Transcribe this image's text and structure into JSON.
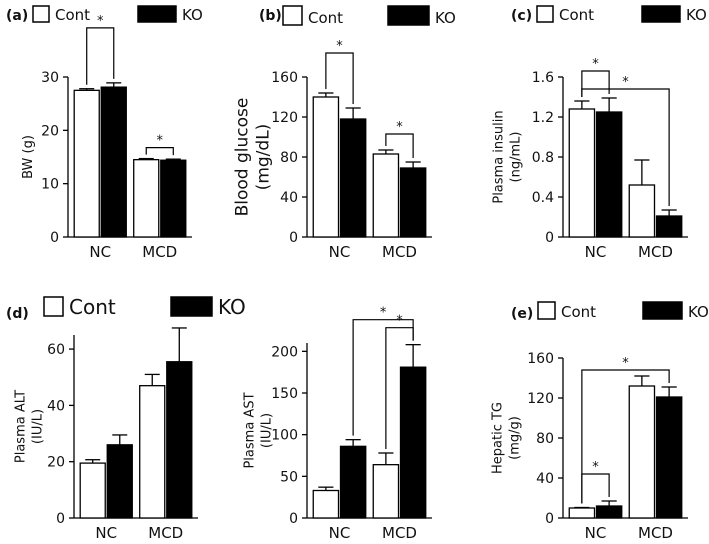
{
  "legend": {
    "cont": "Cont",
    "ko": "KO",
    "cont_color": "#ffffff",
    "ko_color": "#000000"
  },
  "chart_data": [
    {
      "id": "a",
      "panel_label": "(a)",
      "type": "bar",
      "categories": [
        "NC",
        "MCD"
      ],
      "series": [
        {
          "name": "Cont",
          "values": [
            27.5,
            14.5
          ],
          "errors": [
            0.3,
            0.2
          ]
        },
        {
          "name": "KO",
          "values": [
            28.1,
            14.4
          ],
          "errors": [
            0.8,
            0.2
          ]
        }
      ],
      "ylabel_lines": [
        "BW (g)"
      ],
      "ylim": [
        0,
        30
      ],
      "yticks": [
        0,
        10,
        20,
        30
      ],
      "significance": [
        {
          "label": "*",
          "from": [
            0,
            0
          ],
          "to": [
            1,
            0
          ]
        },
        {
          "label": "*",
          "from": [
            0,
            1
          ],
          "to": [
            1,
            1
          ]
        }
      ]
    },
    {
      "id": "b",
      "panel_label": "(b)",
      "type": "bar",
      "categories": [
        "NC",
        "MCD"
      ],
      "series": [
        {
          "name": "Cont",
          "values": [
            140,
            83
          ],
          "errors": [
            4,
            4
          ]
        },
        {
          "name": "KO",
          "values": [
            118,
            69
          ],
          "errors": [
            11,
            6
          ]
        }
      ],
      "ylabel_lines": [
        "Blood glucose",
        "(mg/dL)"
      ],
      "ylim": [
        0,
        160
      ],
      "yticks": [
        0,
        40,
        80,
        120,
        160
      ],
      "significance": [
        {
          "label": "*",
          "from": [
            0,
            0
          ],
          "to": [
            1,
            0
          ]
        },
        {
          "label": "*",
          "from": [
            0,
            1
          ],
          "to": [
            1,
            1
          ]
        }
      ]
    },
    {
      "id": "c",
      "panel_label": "(c)",
      "type": "bar",
      "categories": [
        "NC",
        "MCD"
      ],
      "series": [
        {
          "name": "Cont",
          "values": [
            1.28,
            0.52
          ],
          "errors": [
            0.08,
            0.25
          ]
        },
        {
          "name": "KO",
          "values": [
            1.25,
            0.21
          ],
          "errors": [
            0.14,
            0.06
          ]
        }
      ],
      "ylabel_lines": [
        "Plasma insulin",
        "(ng/mL)"
      ],
      "ylim": [
        0,
        1.6
      ],
      "yticks": [
        "0",
        "0.4",
        "0.8",
        "1.2",
        "1.6"
      ],
      "significance": [
        {
          "label": "*",
          "from": [
            0,
            0
          ],
          "to": [
            1,
            0
          ]
        },
        {
          "label": "*",
          "from": [
            0,
            0
          ],
          "to": [
            1,
            1
          ]
        }
      ]
    },
    {
      "id": "d1",
      "panel_label": "(d)",
      "type": "bar",
      "categories": [
        "NC",
        "MCD"
      ],
      "series": [
        {
          "name": "Cont",
          "values": [
            19.5,
            47
          ],
          "errors": [
            1.2,
            4
          ]
        },
        {
          "name": "KO",
          "values": [
            26,
            55.5
          ],
          "errors": [
            3.5,
            12
          ]
        }
      ],
      "ylabel_lines": [
        "Plasma ALT",
        "(IU/L)"
      ],
      "ylim": [
        0,
        65
      ],
      "yticks": [
        0,
        20,
        40,
        60
      ],
      "significance": []
    },
    {
      "id": "d2",
      "panel_label": "",
      "type": "bar",
      "categories": [
        "NC",
        "MCD"
      ],
      "series": [
        {
          "name": "Cont",
          "values": [
            33,
            64
          ],
          "errors": [
            4,
            14
          ]
        },
        {
          "name": "KO",
          "values": [
            86,
            181
          ],
          "errors": [
            8,
            27
          ]
        }
      ],
      "ylabel_lines": [
        "Plasma AST",
        "(IU/L)"
      ],
      "ylim": [
        0,
        210
      ],
      "yticks": [
        0,
        50,
        100,
        150,
        200
      ],
      "significance": [
        {
          "label": "*",
          "from": [
            0,
            1
          ],
          "to": [
            1,
            1
          ]
        },
        {
          "label": "*",
          "from": [
            1,
            0
          ],
          "to": [
            1,
            1
          ]
        }
      ]
    },
    {
      "id": "e",
      "panel_label": "(e)",
      "type": "bar",
      "categories": [
        "NC",
        "MCD"
      ],
      "series": [
        {
          "name": "Cont",
          "values": [
            10,
            132
          ],
          "errors": [
            0.5,
            10
          ]
        },
        {
          "name": "KO",
          "values": [
            12,
            121
          ],
          "errors": [
            5,
            10
          ]
        }
      ],
      "ylabel_lines": [
        "Hepatic TG",
        "(mg/g)"
      ],
      "ylim": [
        0,
        160
      ],
      "yticks": [
        0,
        40,
        80,
        120,
        160
      ],
      "significance": [
        {
          "label": "*",
          "from": [
            0,
            0
          ],
          "to": [
            1,
            0
          ]
        },
        {
          "label": "*",
          "from": [
            0,
            0
          ],
          "to": [
            1,
            1
          ]
        }
      ]
    }
  ]
}
